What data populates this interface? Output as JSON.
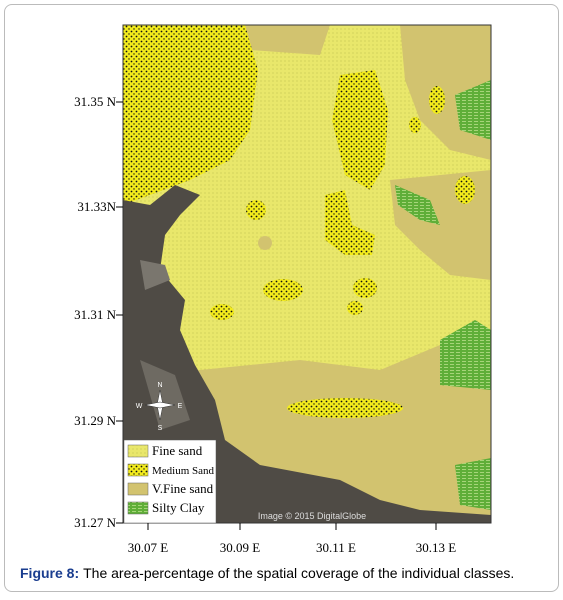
{
  "map": {
    "y_axis_labels": [
      "31.35 N",
      "31.33N",
      "31.31 N",
      "31.29 N",
      "31.27 N"
    ],
    "x_axis_labels": [
      "30.07 E",
      "30.09 E",
      "30.11 E",
      "30.13 E"
    ],
    "legend": [
      "Fine sand",
      "Medium Sand",
      "V.Fine sand",
      "Silty Clay"
    ],
    "watermark": "Image © 2015 DigitalGlobe",
    "compass": [
      "N",
      "E",
      "S",
      "W"
    ]
  },
  "caption": {
    "label": "Figure 8:",
    "text": "The area-percentage of the spatial coverage of the individual classes."
  }
}
